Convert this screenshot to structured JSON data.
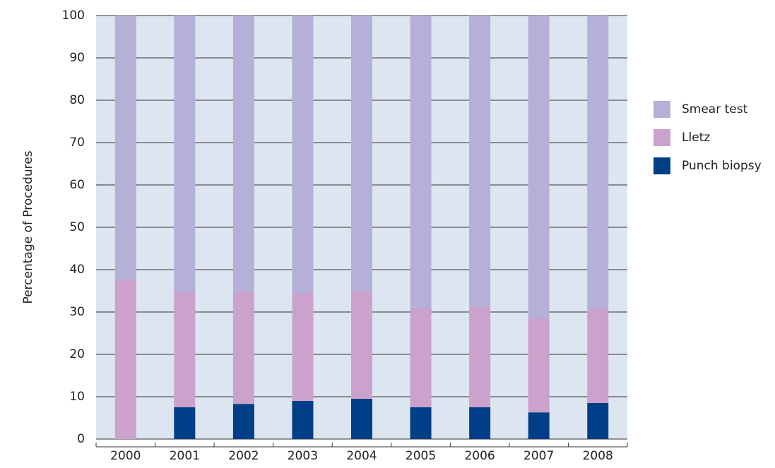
{
  "chart_data": {
    "type": "stacked_bar",
    "y_label": "Percentage of Procedures",
    "categories": [
      "2000",
      "2001",
      "2002",
      "2003",
      "2004",
      "2005",
      "2006",
      "2007",
      "2008"
    ],
    "series": [
      {
        "name": "Punch biopsy",
        "color": "#003f87",
        "values": [
          0,
          7.5,
          8.3,
          9.0,
          9.5,
          7.5,
          7.5,
          6.3,
          8.5
        ]
      },
      {
        "name": "Lletz",
        "color": "#cba2cc",
        "values": [
          37.5,
          27.3,
          26.4,
          25.5,
          25.5,
          23.5,
          23.8,
          22.2,
          22.3
        ]
      },
      {
        "name": "Smear test",
        "color": "#b4b0d8",
        "values": [
          62.5,
          65.2,
          65.3,
          65.5,
          65.0,
          69.0,
          68.7,
          71.5,
          69.2
        ]
      }
    ],
    "ylim": [
      0,
      100
    ],
    "yticks": [
      0,
      10,
      20,
      30,
      40,
      50,
      60,
      70,
      80,
      90,
      100
    ],
    "grid": true,
    "legend": "right"
  }
}
